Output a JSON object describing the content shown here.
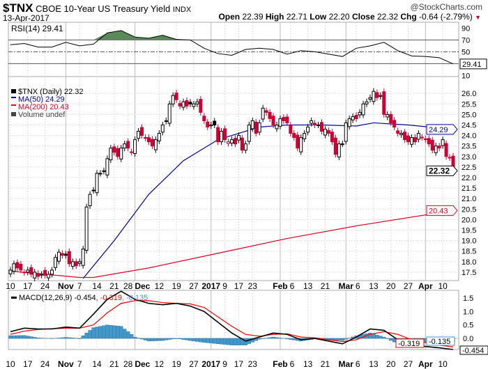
{
  "header": {
    "symbol": "$TNX",
    "name": "CBOE 10-Year US Treasury Yield",
    "exchange": "INDX",
    "watermark": "@StockCharts.com",
    "date": "13-Apr-2017",
    "open_label": "Open",
    "open": "22.39",
    "high_label": "High",
    "high": "22.71",
    "low_label": "Low",
    "low": "22.20",
    "close_label": "Close",
    "close": "22.32",
    "chg_label": "Chg",
    "chg": "-0.64 (-2.79%)"
  },
  "colors": {
    "up": "#000000",
    "down": "#cc0033",
    "ma50": "#000099",
    "ma200": "#dd0022",
    "rsi_fill": "#5a8a5a",
    "macd": "#000000",
    "signal": "#ff0000",
    "hist": "#4499cc"
  },
  "chart_data": [
    {
      "type": "line",
      "title": "RSI(14) 29.41",
      "legend": "RSI(14) 29.41",
      "ylim": [
        8,
        100
      ],
      "yticks": [
        90,
        70,
        50,
        10
      ],
      "reference_lines": [
        70,
        50,
        30
      ],
      "last_value": "29.41",
      "sample_every": 4,
      "values": [
        62,
        64,
        58,
        58,
        66,
        60,
        63,
        82,
        86,
        75,
        73,
        78,
        71,
        70,
        56,
        47,
        44,
        54,
        56,
        54,
        46,
        52,
        50,
        46,
        42,
        56,
        60,
        66,
        52,
        43,
        42,
        40,
        29.41
      ]
    },
    {
      "type": "candlestick",
      "title": "$TNX (Daily) 22.32",
      "legend": [
        {
          "label": "$TNX (Daily) 22.32"
        },
        {
          "label": "MA(50) 24.29"
        },
        {
          "label": "MA(200) 20.43"
        },
        {
          "label": "Volume undef"
        }
      ],
      "ylim": [
        17.1,
        26.8
      ],
      "yticks": [
        17.5,
        18.0,
        18.5,
        19.0,
        19.5,
        20.0,
        20.5,
        21.0,
        21.5,
        22.0,
        22.5,
        23.0,
        23.5,
        24.0,
        24.5,
        25.0,
        25.5,
        26.0
      ],
      "close": [
        17.6,
        17.9,
        17.7,
        17.6,
        17.5,
        17.6,
        17.4,
        17.5,
        17.3,
        17.4,
        17.35,
        17.4,
        17.6,
        18.2,
        18.45,
        18.3,
        18.3,
        17.9,
        18.0,
        17.8,
        18.0,
        18.6,
        20.6,
        21.2,
        21.4,
        22.2,
        22.2,
        22.3,
        22.9,
        23.4,
        23.2,
        23.0,
        23.4,
        23.6,
        23.4,
        23.2,
        23.8,
        24.2,
        24.0,
        23.9,
        23.7,
        23.5,
        23.8,
        24.1,
        24.5,
        24.7,
        25.5,
        25.9,
        25.7,
        25.4,
        25.6,
        25.4,
        25.5,
        25.5,
        25.6,
        25.1,
        24.7,
        24.4,
        24.5,
        24.5,
        23.7,
        24.2,
        23.8,
        23.7,
        23.8,
        23.6,
        24.0,
        23.3,
        23.6,
        24.5,
        24.7,
        24.1,
        24.6,
        25.3,
        25.1,
        24.8,
        24.5,
        24.5,
        24.8,
        24.7,
        24.6,
        24.1,
        23.9,
        23.4,
        23.9,
        24.1,
        24.4,
        24.7,
        24.5,
        24.5,
        24.2,
        24.3,
        24.1,
        23.7,
        23.1,
        23.6,
        23.6,
        24.6,
        24.8,
        24.9,
        24.8,
        25.1,
        25.5,
        25.6,
        25.8,
        26.1,
        25.8,
        25.9,
        25.0,
        25.0,
        24.6,
        24.4,
        24.1,
        24.1,
        23.8,
        23.7,
        23.9,
        23.7,
        24.1,
        23.9,
        23.8,
        23.6,
        23.3,
        23.5,
        23.4,
        23.8,
        23.0,
        22.96,
        22.32
      ],
      "ma50": {
        "label_value": "24.29",
        "points": [
          [
            21,
            17.2
          ],
          [
            30,
            19.0
          ],
          [
            40,
            21.2
          ],
          [
            50,
            22.8
          ],
          [
            60,
            23.8
          ],
          [
            66,
            24.1
          ],
          [
            72,
            24.4
          ],
          [
            80,
            24.5
          ],
          [
            90,
            24.5
          ],
          [
            100,
            24.45
          ],
          [
            105,
            24.6
          ],
          [
            115,
            24.5
          ],
          [
            128,
            24.29
          ]
        ]
      },
      "ma200": {
        "label_value": "20.43",
        "points": [
          [
            0,
            17.55
          ],
          [
            20,
            17.25
          ],
          [
            24,
            17.25
          ],
          [
            40,
            17.7
          ],
          [
            60,
            18.4
          ],
          [
            80,
            19.1
          ],
          [
            100,
            19.7
          ],
          [
            128,
            20.43
          ]
        ]
      },
      "last_label": "22.32"
    },
    {
      "type": "line",
      "title": "MACD(12,26,9)",
      "legend": {
        "name": "MACD(12,26,9)",
        "macd": "-0.454",
        "signal": ", -0.319",
        "hist": ", -0.135"
      },
      "ylim": [
        -0.4,
        1.75
      ],
      "yticks": [
        "1.5",
        "1.0",
        "0.5",
        "0.0"
      ],
      "sample_every": 4,
      "macd": [
        0.25,
        0.38,
        0.35,
        0.35,
        0.42,
        0.38,
        0.9,
        1.45,
        1.75,
        1.45,
        1.3,
        1.25,
        1.3,
        1.2,
        1.0,
        0.6,
        0.2,
        -0.1,
        0.05,
        0.2,
        0.15,
        -0.05,
        0.0,
        -0.1,
        -0.2,
        0.05,
        0.35,
        0.3,
        -0.05,
        -0.2,
        -0.3,
        -0.35,
        -0.454
      ],
      "signal": [
        0.15,
        0.27,
        0.33,
        0.36,
        0.38,
        0.38,
        0.5,
        0.95,
        1.3,
        1.4,
        1.4,
        1.33,
        1.3,
        1.28,
        1.15,
        0.8,
        0.45,
        0.15,
        0.08,
        0.15,
        0.17,
        0.05,
        0.02,
        -0.05,
        -0.12,
        -0.05,
        0.15,
        0.25,
        0.15,
        -0.05,
        -0.15,
        -0.25,
        -0.319
      ],
      "end_labels": {
        "hist": "-0.135",
        "signal": "-0.319",
        "macd": "-0.454"
      }
    }
  ],
  "x_axis": {
    "ticks": [
      {
        "i": 0,
        "label": "10"
      },
      {
        "i": 5,
        "label": "17"
      },
      {
        "i": 10,
        "label": "24"
      },
      {
        "i": 16,
        "label": "Nov",
        "major": true
      },
      {
        "i": 20,
        "label": "7"
      },
      {
        "i": 25,
        "label": "14"
      },
      {
        "i": 30,
        "label": "21"
      },
      {
        "i": 34,
        "label": "28"
      },
      {
        "i": 36,
        "label": "Dec",
        "major": true
      },
      {
        "i": 43,
        "label": "12"
      },
      {
        "i": 48,
        "label": "19"
      },
      {
        "i": 53,
        "label": "27"
      },
      {
        "i": 58,
        "label": "2017",
        "major": true
      },
      {
        "i": 62,
        "label": "9"
      },
      {
        "i": 66,
        "label": "17"
      },
      {
        "i": 70,
        "label": "23"
      },
      {
        "i": 78,
        "label": "Feb",
        "major": true
      },
      {
        "i": 81,
        "label": "6"
      },
      {
        "i": 86,
        "label": "13"
      },
      {
        "i": 91,
        "label": "21"
      },
      {
        "i": 97,
        "label": "Mar",
        "major": true
      },
      {
        "i": 100,
        "label": "6"
      },
      {
        "i": 105,
        "label": "13"
      },
      {
        "i": 110,
        "label": "20"
      },
      {
        "i": 115,
        "label": "27"
      },
      {
        "i": 120,
        "label": "Apr",
        "major": true
      },
      {
        "i": 125,
        "label": "10"
      }
    ]
  }
}
